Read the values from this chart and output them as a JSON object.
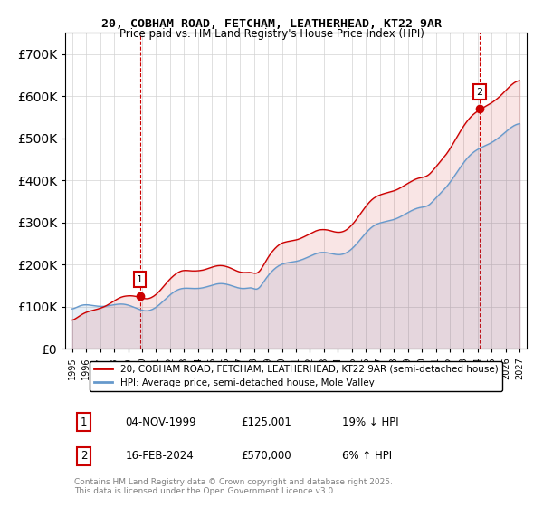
{
  "title": "20, COBHAM ROAD, FETCHAM, LEATHERHEAD, KT22 9AR",
  "subtitle": "Price paid vs. HM Land Registry's House Price Index (HPI)",
  "sale1": {
    "date_label": "04-NOV-1999",
    "price": 125001,
    "hpi_pct": "19% ↓ HPI",
    "marker_year": 1999.84
  },
  "sale2": {
    "date_label": "16-FEB-2024",
    "price": 570000,
    "hpi_pct": "6% ↑ HPI",
    "marker_year": 2024.12
  },
  "legend_red": "20, COBHAM ROAD, FETCHAM, LEATHERHEAD, KT22 9AR (semi-detached house)",
  "legend_blue": "HPI: Average price, semi-detached house, Mole Valley",
  "footnote": "Contains HM Land Registry data © Crown copyright and database right 2025.\nThis data is licensed under the Open Government Licence v3.0.",
  "red_color": "#cc0000",
  "blue_color": "#6699cc",
  "dashed_red": "#cc0000",
  "ylim": [
    0,
    750000
  ],
  "xlim_start": 1994.5,
  "xlim_end": 2027.5
}
